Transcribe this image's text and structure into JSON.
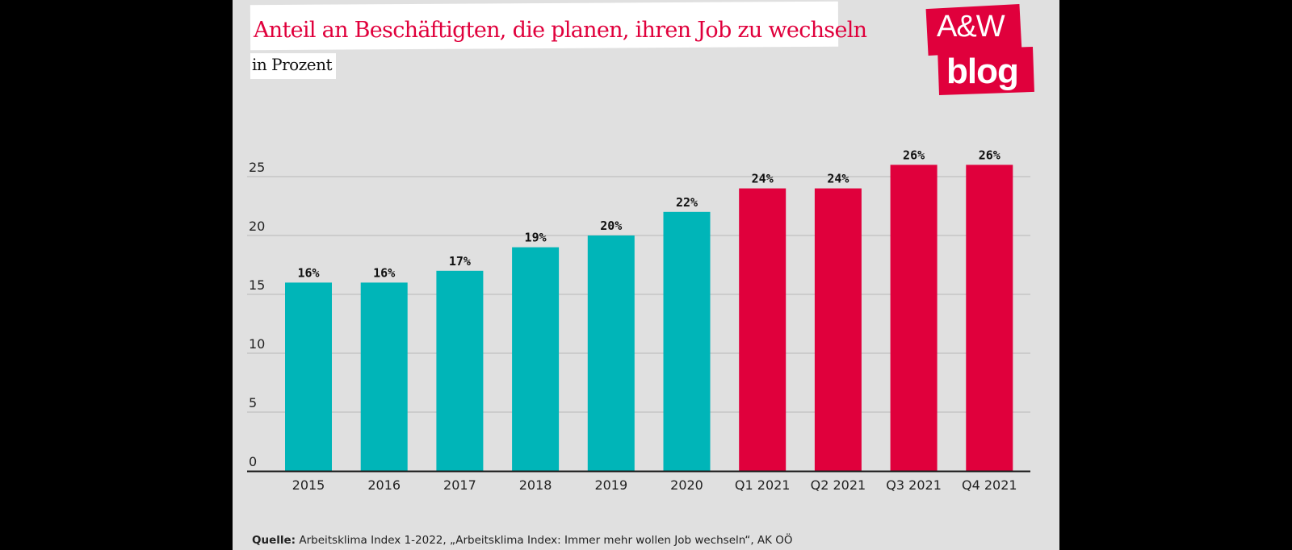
{
  "header": {
    "title": "Anteil an Beschäftigten, die planen, ihren Job zu wechseln",
    "subtitle": "in Prozent"
  },
  "logo": {
    "line1": "A&W",
    "line2": "blog"
  },
  "source": {
    "label": "Quelle:",
    "text": " Arbeitsklima Index 1-2022, „Arbeitsklima Index: Immer mehr wollen Job wechseln“, AK OÖ"
  },
  "colors": {
    "teal": "#00b5b8",
    "red": "#e0003c",
    "grid": "#b8b8b8",
    "axis": "#1a1a1a"
  },
  "chart_data": {
    "type": "bar",
    "title": "Anteil an Beschäftigten, die planen, ihren Job zu wechseln",
    "ylabel": "in Prozent",
    "xlabel": "",
    "categories": [
      "2015",
      "2016",
      "2017",
      "2018",
      "2019",
      "2020",
      "Q1 2021",
      "Q2 2021",
      "Q3 2021",
      "Q4 2021"
    ],
    "values": [
      16,
      16,
      17,
      19,
      20,
      22,
      24,
      24,
      26,
      26
    ],
    "value_labels": [
      "16%",
      "16%",
      "17%",
      "19%",
      "20%",
      "22%",
      "24%",
      "24%",
      "26%",
      "26%"
    ],
    "bar_colors": [
      "teal",
      "teal",
      "teal",
      "teal",
      "teal",
      "teal",
      "red",
      "red",
      "red",
      "red"
    ],
    "yticks": [
      0,
      5,
      10,
      15,
      20,
      25
    ],
    "ylim": [
      0,
      25
    ],
    "grid": true
  }
}
